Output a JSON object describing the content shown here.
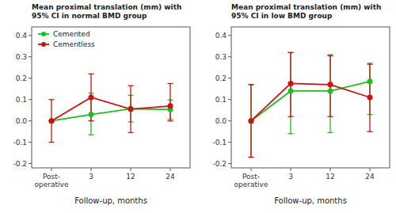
{
  "chart_data": [
    {
      "type": "line",
      "title": "Mean proximal translation (mm) with\n95% CI in normal BMD group",
      "x_label": "Follow-up, months",
      "categories": [
        "Post-\noperative",
        "3",
        "12",
        "24"
      ],
      "ylim": [
        -0.22,
        0.44
      ],
      "yticks": [
        -0.2,
        -0.1,
        {
          "value": 0,
          "label": "0.0"
        },
        0.1,
        0.2,
        0.3,
        0.4
      ],
      "grid": false,
      "legend": "upper left",
      "series": [
        {
          "name": "Cemented",
          "color": "#22bb22",
          "values": [
            0.0,
            0.03,
            0.057,
            0.053
          ],
          "lower": [
            0.0,
            -0.065,
            -0.005,
            0.008
          ],
          "upper": [
            0.0,
            0.13,
            0.12,
            0.098
          ]
        },
        {
          "name": "Cementless",
          "color": "#cc1111",
          "values": [
            0.0,
            0.11,
            0.055,
            0.07
          ],
          "lower": [
            -0.1,
            0.0,
            -0.055,
            0.0
          ],
          "upper": [
            0.1,
            0.22,
            0.165,
            0.175
          ]
        }
      ]
    },
    {
      "type": "line",
      "title": "Mean proximal translation (mm) with\n95% CI in low BMD group",
      "x_label": "Follow-up, months",
      "categories": [
        "Post-\noperative",
        "3",
        "12",
        "24"
      ],
      "ylim": [
        -0.22,
        0.44
      ],
      "yticks": [
        -0.2,
        -0.1,
        {
          "value": 0,
          "label": "0.0"
        },
        0.1,
        0.2,
        0.3,
        0.4
      ],
      "grid": false,
      "series": [
        {
          "color": "#22bb22",
          "values": [
            0.0,
            0.14,
            0.14,
            0.185
          ],
          "lower": [
            -0.17,
            -0.06,
            -0.055,
            0.03
          ],
          "upper": [
            0.17,
            0.32,
            0.31,
            0.27
          ]
        },
        {
          "color": "#cc1111",
          "values": [
            0.0,
            0.175,
            0.17,
            0.11
          ],
          "lower": [
            -0.17,
            0.02,
            0.02,
            -0.05
          ],
          "upper": [
            0.17,
            0.32,
            0.305,
            0.265
          ]
        }
      ]
    }
  ]
}
